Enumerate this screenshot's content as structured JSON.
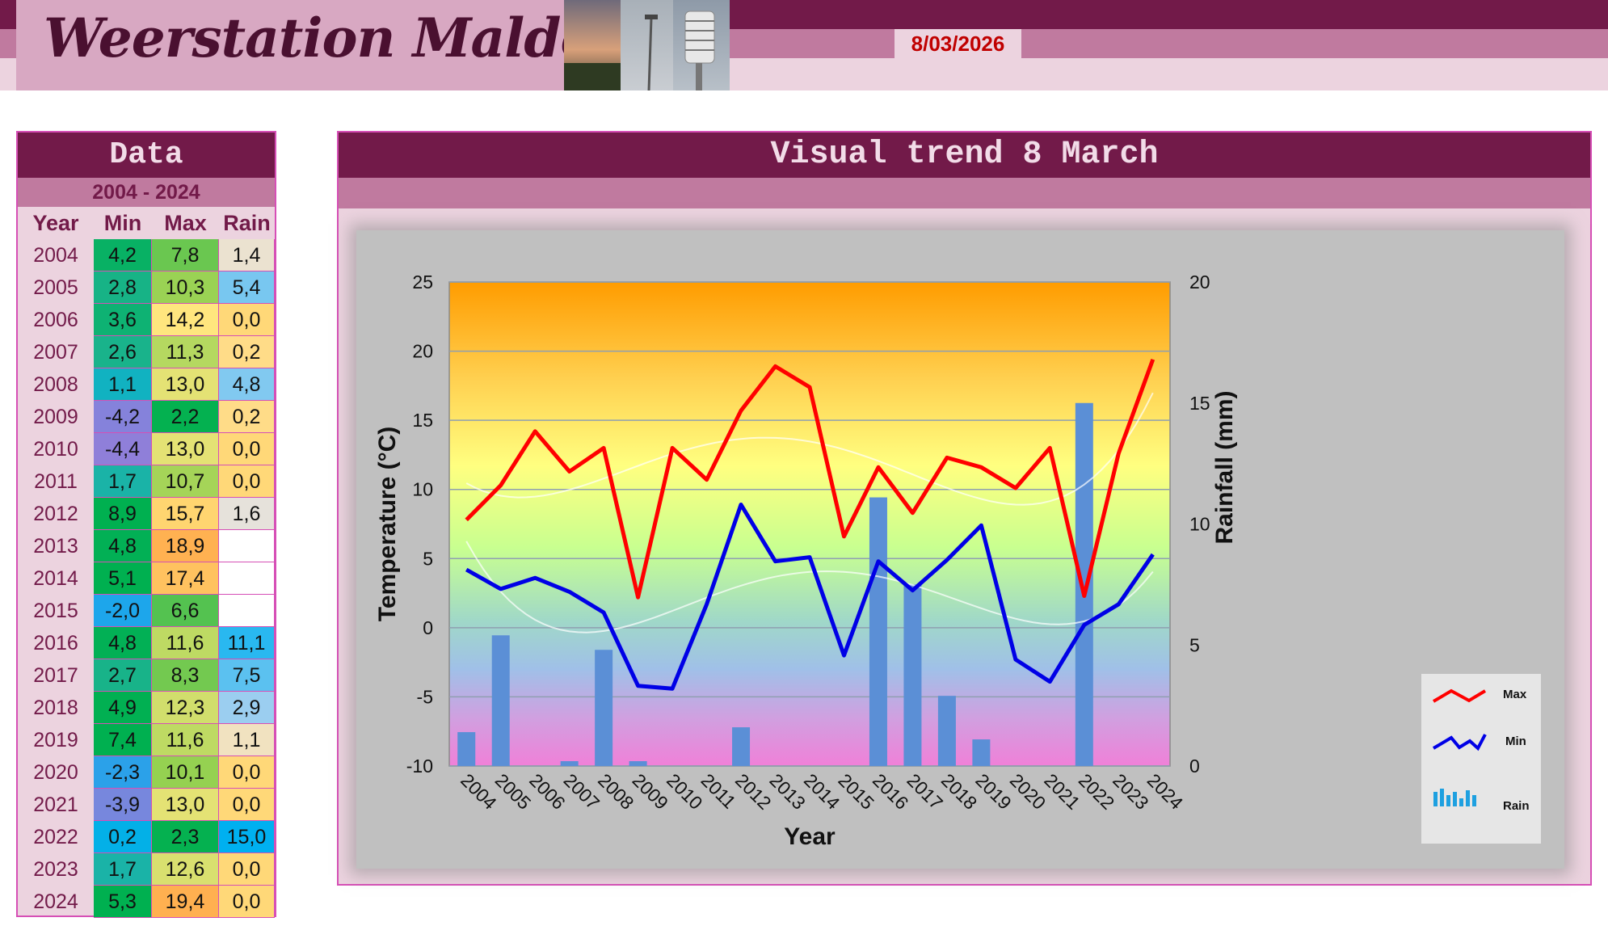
{
  "header": {
    "site_title": "Weerstation Malderen",
    "date": "8/03/2026"
  },
  "table": {
    "title": "Data",
    "range": "2004 - 2024",
    "columns": [
      "Year",
      "Min",
      "Max",
      "Rain"
    ],
    "rows": [
      {
        "year": "2004",
        "min": "4,2",
        "max": "7,8",
        "rain": "1,4"
      },
      {
        "year": "2005",
        "min": "2,8",
        "max": "10,3",
        "rain": "5,4"
      },
      {
        "year": "2006",
        "min": "3,6",
        "max": "14,2",
        "rain": "0,0"
      },
      {
        "year": "2007",
        "min": "2,6",
        "max": "11,3",
        "rain": "0,2"
      },
      {
        "year": "2008",
        "min": "1,1",
        "max": "13,0",
        "rain": "4,8"
      },
      {
        "year": "2009",
        "min": "-4,2",
        "max": "2,2",
        "rain": "0,2"
      },
      {
        "year": "2010",
        "min": "-4,4",
        "max": "13,0",
        "rain": "0,0"
      },
      {
        "year": "2011",
        "min": "1,7",
        "max": "10,7",
        "rain": "0,0"
      },
      {
        "year": "2012",
        "min": "8,9",
        "max": "15,7",
        "rain": "1,6"
      },
      {
        "year": "2013",
        "min": "4,8",
        "max": "18,9",
        "rain": ""
      },
      {
        "year": "2014",
        "min": "5,1",
        "max": "17,4",
        "rain": ""
      },
      {
        "year": "2015",
        "min": "-2,0",
        "max": "6,6",
        "rain": ""
      },
      {
        "year": "2016",
        "min": "4,8",
        "max": "11,6",
        "rain": "11,1"
      },
      {
        "year": "2017",
        "min": "2,7",
        "max": "8,3",
        "rain": "7,5"
      },
      {
        "year": "2018",
        "min": "4,9",
        "max": "12,3",
        "rain": "2,9"
      },
      {
        "year": "2019",
        "min": "7,4",
        "max": "11,6",
        "rain": "1,1"
      },
      {
        "year": "2020",
        "min": "-2,3",
        "max": "10,1",
        "rain": "0,0"
      },
      {
        "year": "2021",
        "min": "-3,9",
        "max": "13,0",
        "rain": "0,0"
      },
      {
        "year": "2022",
        "min": "0,2",
        "max": "2,3",
        "rain": "15,0"
      },
      {
        "year": "2023",
        "min": "1,7",
        "max": "12,6",
        "rain": "0,0"
      },
      {
        "year": "2024",
        "min": "5,3",
        "max": "19,4",
        "rain": "0,0"
      }
    ]
  },
  "panel": {
    "title": "Visual trend 8 March"
  },
  "chart_data": {
    "type": "line",
    "categories": [
      "2004",
      "2005",
      "2006",
      "2007",
      "2008",
      "2009",
      "2010",
      "2011",
      "2012",
      "2013",
      "2014",
      "2015",
      "2016",
      "2017",
      "2018",
      "2019",
      "2020",
      "2021",
      "2022",
      "2023",
      "2024"
    ],
    "xlabel": "Year",
    "ylabel": "Temperature (°C)",
    "y2label": "Rainfall (mm)",
    "ylim": [
      -10,
      25
    ],
    "y2lim": [
      0,
      20
    ],
    "yticks": [
      "25",
      "20",
      "15",
      "10",
      "5",
      "0",
      "-5",
      "-10"
    ],
    "y2ticks": [
      "20",
      "15",
      "10",
      "5",
      "0"
    ],
    "grid": true,
    "legend_position": "bottom-right",
    "series": [
      {
        "name": "Max",
        "kind": "line",
        "axis": "left",
        "color": "#ff0000",
        "values": [
          7.8,
          10.3,
          14.2,
          11.3,
          13.0,
          2.2,
          13.0,
          10.7,
          15.7,
          18.9,
          17.4,
          6.6,
          11.6,
          8.3,
          12.3,
          11.6,
          10.1,
          13.0,
          2.3,
          12.6,
          19.4
        ]
      },
      {
        "name": "Min",
        "kind": "line",
        "axis": "left",
        "color": "#0000e6",
        "values": [
          4.2,
          2.8,
          3.6,
          2.6,
          1.1,
          -4.2,
          -4.4,
          1.7,
          8.9,
          4.8,
          5.1,
          -2.0,
          4.8,
          2.7,
          4.9,
          7.4,
          -2.3,
          -3.9,
          0.2,
          1.7,
          5.3
        ]
      },
      {
        "name": "Rain",
        "kind": "bar",
        "axis": "right",
        "color": "#5b8fd6",
        "values": [
          1.4,
          5.4,
          0.0,
          0.2,
          4.8,
          0.2,
          0.0,
          0.0,
          1.6,
          null,
          null,
          null,
          11.1,
          7.5,
          2.9,
          1.1,
          0.0,
          0.0,
          15.0,
          0.0,
          0.0
        ]
      }
    ],
    "colors": {
      "min_scale_low": "#8f7fd9",
      "min_scale_mid": "#00b050",
      "max_scale_high": "#ffb050",
      "rain_high": "#00b0f0",
      "rain_zero": "#ffd878"
    }
  }
}
